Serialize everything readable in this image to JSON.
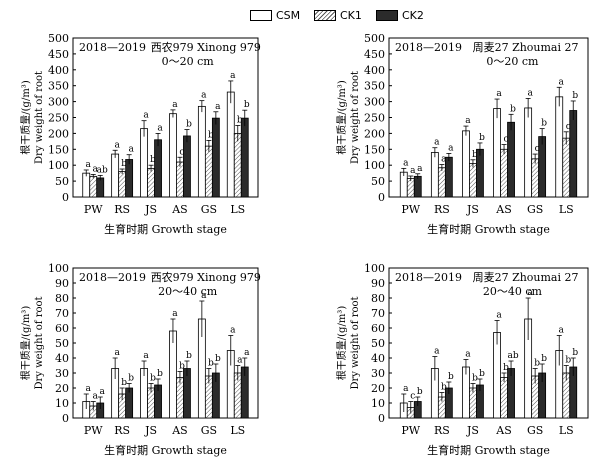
{
  "legend": {
    "items": [
      {
        "label": "CSM",
        "pattern": "open"
      },
      {
        "label": "CK1",
        "pattern": "hatched"
      },
      {
        "label": "CK2",
        "pattern": "solid"
      }
    ]
  },
  "colors": {
    "bar_edge": "#000000",
    "solid_fill": "#2b2b2b",
    "hatch": "#555555",
    "background": "#ffffff"
  },
  "chart_data": [
    {
      "type": "bar",
      "year": "2018—2019",
      "title": "西农979 Xinong 979",
      "subtitle": "0～20 cm",
      "xlabel": "生育时期 Growth stage",
      "ylabel_cn": "根干质量/(g/m³)",
      "ylabel_en": "Dry weight of root",
      "ylim": [
        0,
        500
      ],
      "yticks": [
        "0",
        "50",
        "100",
        "150",
        "200",
        "250",
        "300",
        "350",
        "400",
        "450",
        "500"
      ],
      "categories": [
        "PW",
        "RS",
        "JS",
        "AS",
        "GS",
        "LS"
      ],
      "series": [
        {
          "name": "CSM",
          "values": [
            75,
            135,
            215,
            262,
            285,
            330
          ],
          "errors": [
            10,
            12,
            25,
            12,
            18,
            35
          ],
          "letters": [
            "a",
            "a",
            "a",
            "a",
            "a",
            "a"
          ]
        },
        {
          "name": "CK1",
          "values": [
            65,
            80,
            90,
            110,
            160,
            200
          ],
          "errors": [
            6,
            8,
            10,
            15,
            18,
            25
          ],
          "letters": [
            "a",
            "b",
            "b",
            "c",
            "b",
            "b"
          ]
        },
        {
          "name": "CK2",
          "values": [
            60,
            118,
            180,
            192,
            248,
            248
          ],
          "errors": [
            8,
            15,
            20,
            20,
            20,
            25
          ],
          "letters": [
            "ab",
            "a",
            "a",
            "b",
            "a",
            "b"
          ]
        }
      ]
    },
    {
      "type": "bar",
      "year": "2018—2019",
      "title": "周麦27 Zhoumai 27",
      "subtitle": "0～20 cm",
      "xlabel": "生育时期 Growth stage",
      "ylabel_cn": "根干质量/(g/m³)",
      "ylabel_en": "Dry weight of root",
      "ylim": [
        0,
        500
      ],
      "yticks": [
        "0",
        "50",
        "100",
        "150",
        "200",
        "250",
        "300",
        "350",
        "400",
        "450",
        "500"
      ],
      "categories": [
        "PW",
        "RS",
        "JS",
        "AS",
        "GS",
        "LS"
      ],
      "series": [
        {
          "name": "CSM",
          "values": [
            78,
            140,
            208,
            278,
            280,
            315
          ],
          "errors": [
            12,
            15,
            15,
            30,
            30,
            30
          ],
          "letters": [
            "a",
            "a",
            "a",
            "a",
            "a",
            "a"
          ]
        },
        {
          "name": "CK1",
          "values": [
            58,
            92,
            105,
            150,
            120,
            185
          ],
          "errors": [
            8,
            10,
            12,
            15,
            15,
            20
          ],
          "letters": [
            "a",
            "a",
            "b",
            "c",
            "c",
            "c"
          ]
        },
        {
          "name": "CK2",
          "values": [
            65,
            125,
            150,
            235,
            190,
            272
          ],
          "errors": [
            8,
            12,
            20,
            25,
            25,
            30
          ],
          "letters": [
            "a",
            "a",
            "b",
            "b",
            "b",
            "b"
          ]
        }
      ]
    },
    {
      "type": "bar",
      "year": "2018—2019",
      "title": "西农979 Xinong 979",
      "subtitle": "20～40 cm",
      "xlabel": "生育时期 Growth stage",
      "ylabel_cn": "根干质量/(g/m³)",
      "ylabel_en": "Dry weight of root",
      "ylim": [
        0,
        100
      ],
      "yticks": [
        "0",
        "10",
        "20",
        "30",
        "40",
        "50",
        "60",
        "70",
        "80",
        "90",
        "100"
      ],
      "categories": [
        "PW",
        "RS",
        "JS",
        "AS",
        "GS",
        "LS"
      ],
      "series": [
        {
          "name": "CSM",
          "values": [
            11,
            33,
            33,
            58,
            66,
            45
          ],
          "errors": [
            5,
            7,
            5,
            8,
            12,
            10
          ],
          "letters": [
            "a",
            "a",
            "a",
            "a",
            "a",
            "a"
          ]
        },
        {
          "name": "CK1",
          "values": [
            8,
            16,
            20,
            27,
            28,
            30
          ],
          "errors": [
            3,
            4,
            3,
            4,
            5,
            5
          ],
          "letters": [
            "a",
            "b",
            "b",
            "b",
            "b",
            "a"
          ]
        },
        {
          "name": "CK2",
          "values": [
            10,
            20,
            22,
            33,
            30,
            34
          ],
          "errors": [
            4,
            3,
            4,
            5,
            6,
            6
          ],
          "letters": [
            "a",
            "b",
            "b",
            "b",
            "b",
            "a"
          ]
        }
      ]
    },
    {
      "type": "bar",
      "year": "2018—2019",
      "title": "周麦27 Zhoumai 27",
      "subtitle": "20～40 cm",
      "xlabel": "生育时期 Growth stage",
      "ylabel_cn": "根干质量/(g/m³)",
      "ylabel_en": "Dry weight of root",
      "ylim": [
        0,
        100
      ],
      "yticks": [
        "0",
        "10",
        "20",
        "30",
        "40",
        "50",
        "60",
        "70",
        "80",
        "90",
        "100"
      ],
      "categories": [
        "PW",
        "RS",
        "JS",
        "AS",
        "GS",
        "LS"
      ],
      "series": [
        {
          "name": "CSM",
          "values": [
            10,
            33,
            34,
            57,
            66,
            45
          ],
          "errors": [
            6,
            8,
            5,
            8,
            14,
            10
          ],
          "letters": [
            "a",
            "a",
            "a",
            "a",
            "a",
            "a"
          ]
        },
        {
          "name": "CK1",
          "values": [
            7,
            14,
            20,
            27,
            28,
            30
          ],
          "errors": [
            4,
            3,
            3,
            3,
            5,
            5
          ],
          "letters": [
            "c",
            "b",
            "b",
            "b",
            "b",
            "b"
          ]
        },
        {
          "name": "CK2",
          "values": [
            11,
            20,
            22,
            33,
            30,
            34
          ],
          "errors": [
            3,
            4,
            4,
            5,
            6,
            6
          ],
          "letters": [
            "b",
            "b",
            "b",
            "ab",
            "b",
            "b"
          ]
        }
      ]
    }
  ]
}
